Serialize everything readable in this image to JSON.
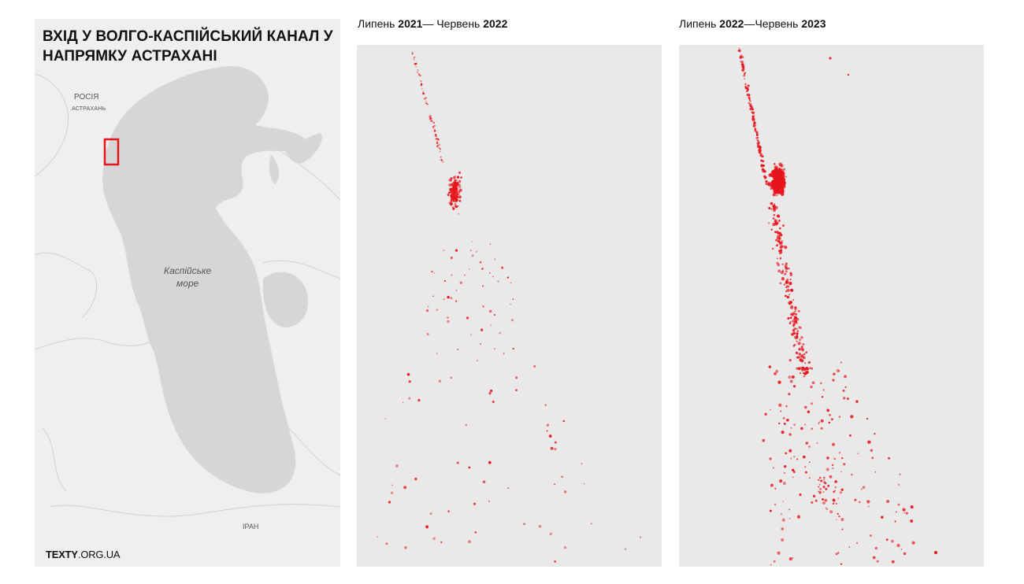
{
  "map": {
    "title": "ВХІД У ВОЛГО-КАСПІЙСЬКИЙ КАНАЛ У НАПРЯМКУ АСТРАХАНІ",
    "labels": {
      "russia": "РОСІЯ",
      "astrakhan": "АСТРАХАНЬ",
      "sea_line1": "Каспійське",
      "sea_line2": "море",
      "iran": "ІРАН"
    },
    "logo": {
      "bold": "TEXTY",
      "rest": ".ORG.UA"
    },
    "colors": {
      "water": "#d6d6d9",
      "land": "#efefef",
      "highlight": "#e8141b"
    }
  },
  "periods": [
    {
      "prefix": "Липень ",
      "year_start": "2021",
      "separator": "— Червень ",
      "year_end": "2022"
    },
    {
      "prefix": "Липень ",
      "year_start": "2022",
      "separator": "—Червень ",
      "year_end": "2023"
    }
  ],
  "colors": {
    "dot": "#e8141b",
    "panel_bg": "#e9e9e9"
  }
}
